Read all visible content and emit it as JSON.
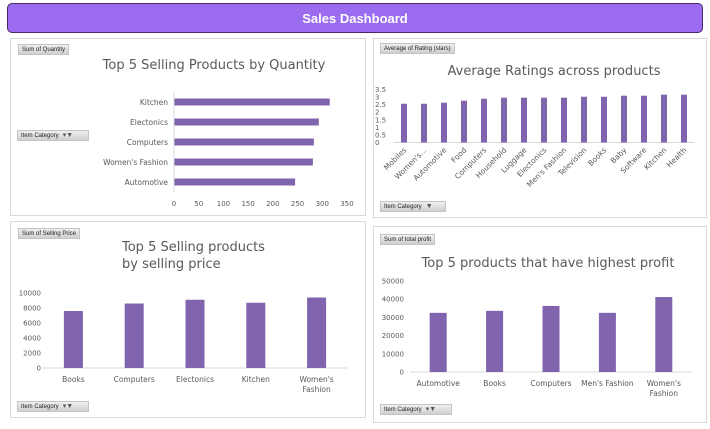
{
  "header": {
    "title": "Sales Dashboard"
  },
  "colors": {
    "header": "#9b6cf0",
    "bar": "#8064ae",
    "axis": "#d9d9d9",
    "text": "#595959"
  },
  "panels": {
    "quantity": {
      "field_button": "Sum of Quantity",
      "filter_button": "Item Category",
      "filter_icon": "filter-icon"
    },
    "rating": {
      "field_button": "Average of Rating (stars)",
      "filter_button": "Item Category",
      "filter_icon": "dropdown-icon"
    },
    "price": {
      "field_button": "Sum of Selling Price",
      "filter_button": "Item Category",
      "filter_icon": "filter-icon"
    },
    "profit": {
      "field_button": "Sum of total profit",
      "filter_button": "Item Category",
      "filter_icon": "filter-icon"
    }
  },
  "chart_data": [
    {
      "id": "quantity",
      "type": "bar",
      "orientation": "horizontal",
      "title": "Top 5 Selling Products by Quantity",
      "categories": [
        "Kitchen",
        "Electonics",
        "Computers",
        "Women's Fashion",
        "Automotive"
      ],
      "values": [
        314,
        292,
        282,
        280,
        244
      ],
      "xlim": [
        0,
        350
      ],
      "ticks": [
        "0",
        "50",
        "100",
        "150",
        "200",
        "250",
        "300",
        "350"
      ],
      "tick_values": [
        0,
        50,
        100,
        150,
        200,
        250,
        300,
        350
      ],
      "xlabel": "",
      "ylabel": "",
      "grid": false,
      "legend": "none"
    },
    {
      "id": "rating",
      "type": "bar",
      "orientation": "vertical",
      "title": "Average Ratings across products",
      "categories": [
        "Mobiles",
        "Women's...",
        "Automotive",
        "Food",
        "Computers",
        "Household",
        "Luggage",
        "Electonics",
        "Men's Fashion",
        "Television",
        "Books",
        "Baby",
        "Software",
        "Kitchen",
        "Health"
      ],
      "values": [
        2.56,
        2.56,
        2.63,
        2.76,
        2.89,
        2.96,
        2.96,
        2.96,
        2.96,
        3.02,
        3.02,
        3.09,
        3.09,
        3.16,
        3.16
      ],
      "ylim": [
        0,
        3.5
      ],
      "ticks": [
        "0",
        "0.5",
        "1",
        "1.5",
        "2",
        "2.5",
        "3",
        "3.5"
      ],
      "tick_values": [
        0,
        0.5,
        1,
        1.5,
        2,
        2.5,
        3,
        3.5
      ],
      "xlabel": "",
      "ylabel": "",
      "grid": false,
      "legend": "none"
    },
    {
      "id": "price",
      "type": "bar",
      "orientation": "vertical",
      "title": [
        "Top 5 Selling products",
        "by selling price"
      ],
      "categories": [
        [
          "Books"
        ],
        [
          "Computers"
        ],
        [
          "Electonics"
        ],
        [
          "Kitchen"
        ],
        [
          "Women's",
          "Fashion"
        ]
      ],
      "values": [
        7600,
        8600,
        9100,
        8700,
        9400
      ],
      "ylim": [
        0,
        10000
      ],
      "ticks": [
        "0",
        "2000",
        "4000",
        "6000",
        "8000",
        "10000"
      ],
      "tick_values": [
        0,
        2000,
        4000,
        6000,
        8000,
        10000
      ],
      "xlabel": "",
      "ylabel": "",
      "grid": false,
      "legend": "none"
    },
    {
      "id": "profit",
      "type": "bar",
      "orientation": "vertical",
      "title": "Top 5 products that have highest profit",
      "categories": [
        [
          "Automotive"
        ],
        [
          "Books"
        ],
        [
          "Computers"
        ],
        [
          "Men's Fashion"
        ],
        [
          "Women's",
          "Fashion"
        ]
      ],
      "values": [
        32500,
        33600,
        36300,
        32500,
        41200
      ],
      "ylim": [
        0,
        50000
      ],
      "ticks": [
        "0",
        "10000",
        "20000",
        "30000",
        "40000",
        "50000"
      ],
      "tick_values": [
        0,
        10000,
        20000,
        30000,
        40000,
        50000
      ],
      "xlabel": "",
      "ylabel": "",
      "grid": false,
      "legend": "none"
    }
  ]
}
